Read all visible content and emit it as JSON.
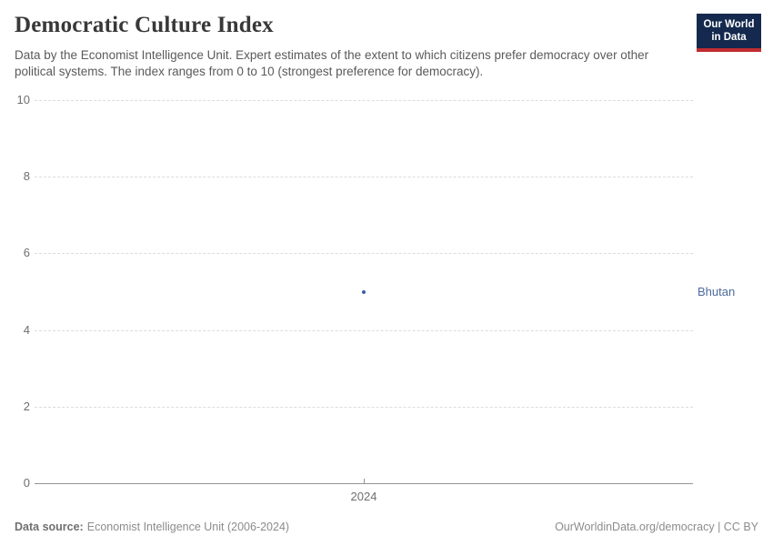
{
  "header": {
    "title": "Democratic Culture Index",
    "subtitle": "Data by the Economist Intelligence Unit. Expert estimates of the extent to which citizens prefer democracy over other political systems. The index ranges from 0 to 10 (strongest preference for democracy).",
    "logo": {
      "line1": "Our World",
      "line2": "in Data",
      "bg_color": "#15294e",
      "accent_color": "#c12c30"
    }
  },
  "chart_data": {
    "type": "scatter",
    "title": "Democratic Culture Index",
    "subtitle": "Data by the Economist Intelligence Unit. Expert estimates of the extent to which citizens prefer democracy over other political systems. The index ranges from 0 to 10 (strongest preference for democracy).",
    "series": [
      {
        "name": "Bhutan",
        "x": [
          2024
        ],
        "y": [
          5
        ],
        "color": "#3c5fa5",
        "label_color": "#4c6a9c"
      }
    ],
    "xticks": [
      2024
    ],
    "yticks": [
      0,
      2,
      4,
      6,
      8,
      10
    ],
    "ylim": [
      0,
      10
    ],
    "xlabel": "",
    "ylabel": "",
    "grid": "horizontal-dashed",
    "legend": "entity-labels-right"
  },
  "footer": {
    "source_label": "Data source:",
    "source_text": "Economist Intelligence Unit (2006-2024)",
    "credit": "OurWorldinData.org/democracy | CC BY"
  }
}
